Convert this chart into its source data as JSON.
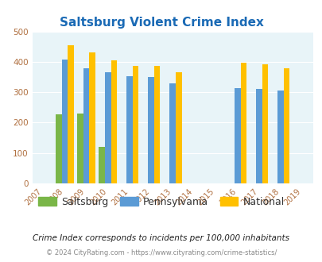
{
  "title": "Saltsburg Violent Crime Index",
  "years": [
    2007,
    2008,
    2009,
    2010,
    2011,
    2012,
    2013,
    2014,
    2015,
    2016,
    2017,
    2018,
    2019
  ],
  "saltsburg": {
    "years": [
      2008,
      2009,
      2010
    ],
    "values": [
      228,
      231,
      120
    ]
  },
  "pennsylvania": {
    "years": [
      2008,
      2009,
      2010,
      2011,
      2012,
      2013,
      2016,
      2017,
      2018
    ],
    "values": [
      408,
      380,
      366,
      352,
      349,
      328,
      314,
      311,
      305
    ]
  },
  "national": {
    "years": [
      2008,
      2009,
      2010,
      2011,
      2012,
      2013,
      2016,
      2017,
      2018
    ],
    "values": [
      455,
      432,
      405,
      387,
      387,
      366,
      397,
      393,
      380
    ]
  },
  "saltsburg_color": "#7ab648",
  "pennsylvania_color": "#5b9bd5",
  "national_color": "#ffc000",
  "background_color": "#e8f4f8",
  "ylim": [
    0,
    500
  ],
  "yticks": [
    0,
    100,
    200,
    300,
    400,
    500
  ],
  "bar_width": 0.28,
  "subtitle": "Crime Index corresponds to incidents per 100,000 inhabitants",
  "copyright": "© 2024 CityRating.com - https://www.cityrating.com/crime-statistics/"
}
